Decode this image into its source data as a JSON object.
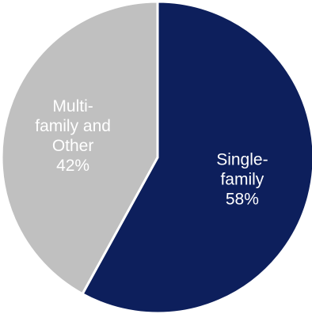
{
  "chart_data": {
    "type": "pie",
    "title": "",
    "start_angle_deg": 0,
    "direction": "clockwise",
    "legend": "none",
    "slices": [
      {
        "label": "Single-family",
        "label_lines": [
          "Single-",
          "family"
        ],
        "value": 58,
        "value_label": "58%",
        "color": "#0d1f5c"
      },
      {
        "label": "Multi-family and Other",
        "label_lines": [
          "Multi-",
          "family and",
          "Other"
        ],
        "value": 42,
        "value_label": "42%",
        "color": "#c0c0c0"
      }
    ]
  }
}
